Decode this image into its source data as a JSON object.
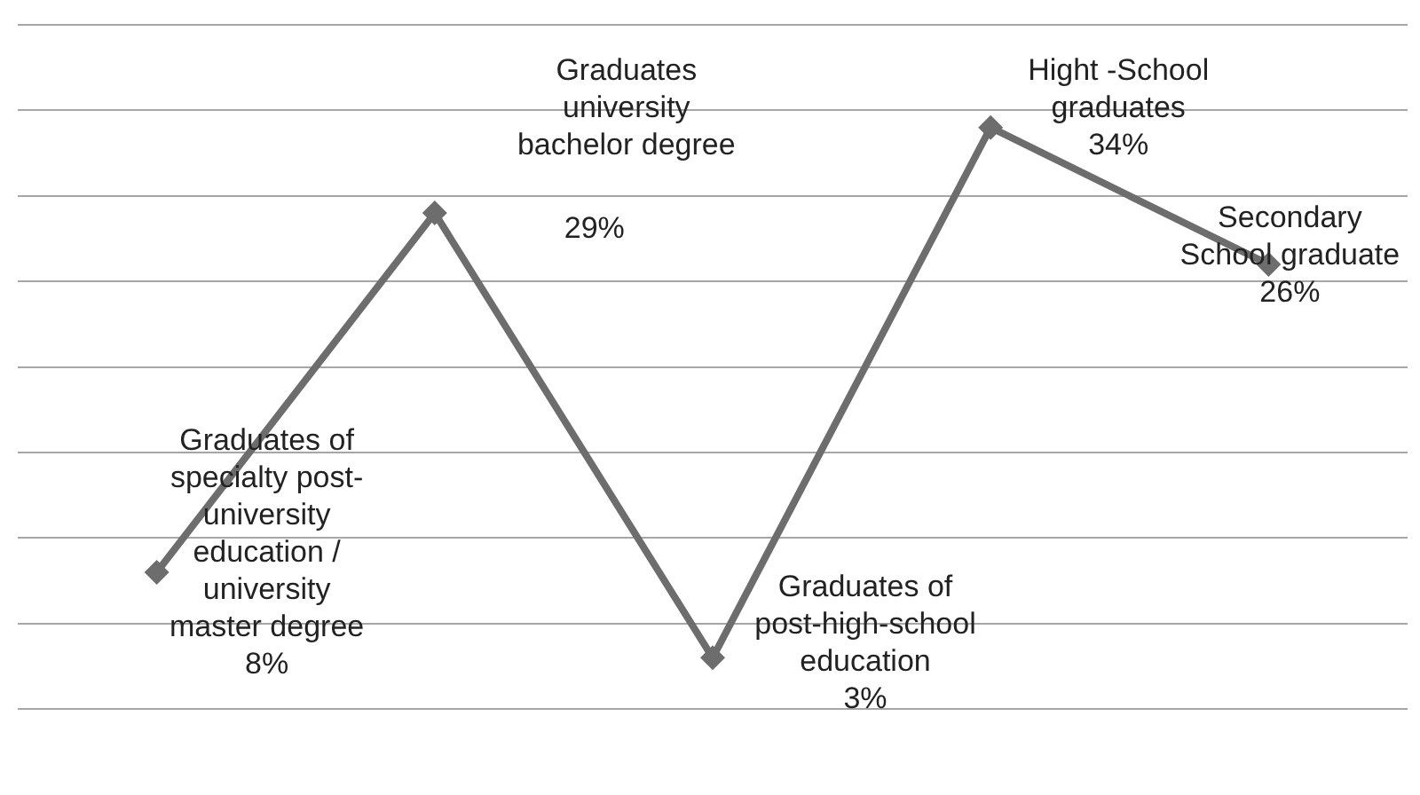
{
  "chart_data": {
    "type": "line",
    "categories": [
      null,
      null,
      null,
      null,
      null
    ],
    "series": [
      {
        "color": "#6d6d6d",
        "values": [
          8,
          29,
          3,
          34,
          26
        ],
        "value_labels": [
          "Graduates of specialty post-university education / university master degree 8%",
          "Graduates university bachelor degree 29%",
          "Graduates of post-high-school education 3%",
          "Hight -School graduates 34%",
          "Secondary School graduate 26%"
        ]
      }
    ],
    "ylim": [
      0,
      40
    ],
    "yticks": [
      {
        "value": 0,
        "label": null
      },
      {
        "value": 5,
        "label": null
      },
      {
        "value": 10,
        "label": null
      },
      {
        "value": 15,
        "label": null
      },
      {
        "value": 20,
        "label": null
      },
      {
        "value": 25,
        "label": null
      },
      {
        "value": 30,
        "label": null
      },
      {
        "value": 35,
        "label": null
      },
      {
        "value": 40,
        "label": null
      }
    ],
    "grid": "y",
    "marker": "diamond",
    "line_style": "solid"
  }
}
